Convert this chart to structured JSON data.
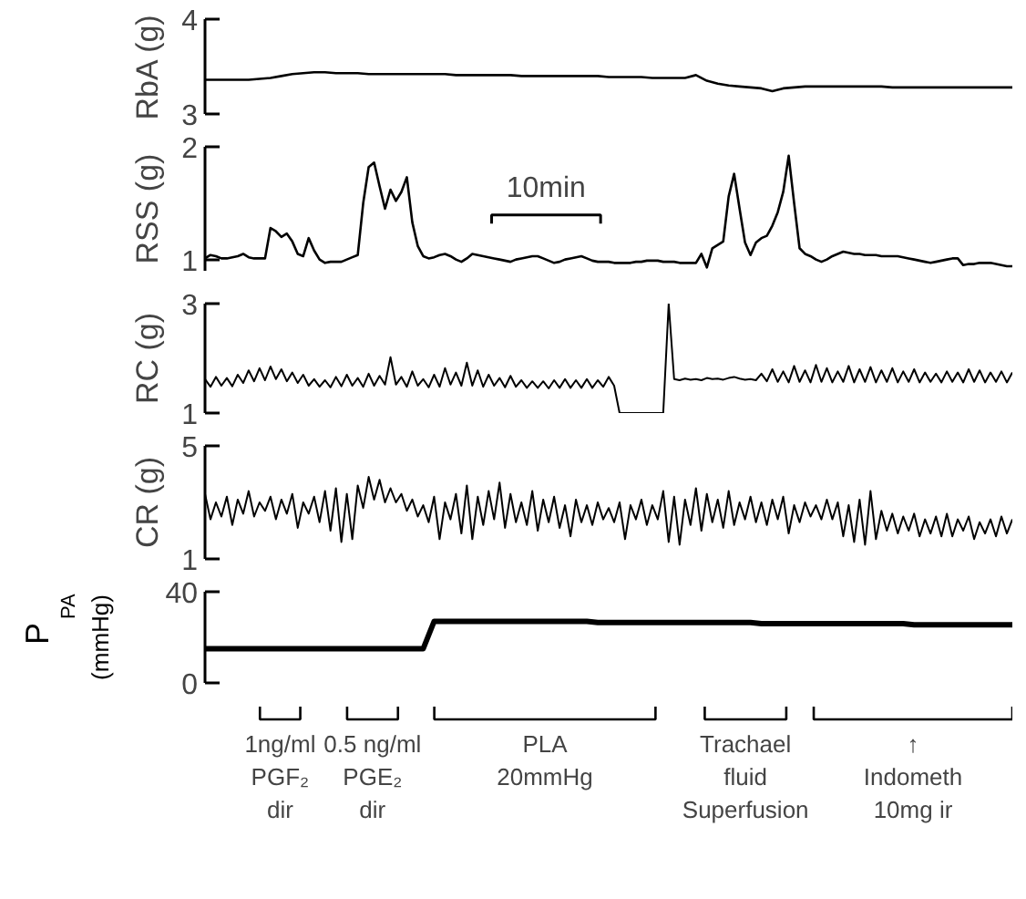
{
  "chart_data": [
    {
      "type": "line",
      "ylabel": "RbA (g)",
      "color": "#000000",
      "ylim": [
        3,
        4
      ],
      "yticks": [
        3,
        4
      ],
      "tick_labels": "y",
      "categories": [
        null,
        null,
        null,
        null,
        null,
        null,
        null,
        null,
        null,
        null,
        null,
        null,
        null,
        null,
        null,
        null,
        null,
        null,
        null,
        null,
        null,
        null,
        null,
        null,
        null,
        null,
        null,
        null,
        null,
        null,
        null,
        null,
        null,
        null,
        null,
        null,
        null,
        null,
        null,
        null,
        null,
        null,
        null,
        null,
        null,
        null,
        null,
        null,
        null,
        null,
        null,
        null,
        null,
        null,
        null,
        null,
        null,
        null,
        null,
        null,
        null,
        null,
        null,
        null,
        null,
        null,
        null,
        null,
        null,
        null,
        null,
        null,
        null,
        null,
        null
      ],
      "values": [
        3.36,
        3.36,
        3.36,
        3.36,
        3.36,
        3.37,
        3.38,
        3.4,
        3.42,
        3.43,
        3.44,
        3.44,
        3.43,
        3.43,
        3.43,
        3.42,
        3.42,
        3.42,
        3.42,
        3.42,
        3.42,
        3.42,
        3.42,
        3.41,
        3.41,
        3.41,
        3.41,
        3.41,
        3.41,
        3.4,
        3.4,
        3.4,
        3.4,
        3.4,
        3.4,
        3.4,
        3.4,
        3.39,
        3.39,
        3.39,
        3.39,
        3.38,
        3.38,
        3.38,
        3.38,
        3.41,
        3.35,
        3.32,
        3.3,
        3.29,
        3.28,
        3.27,
        3.24,
        3.27,
        3.28,
        3.29,
        3.29,
        3.29,
        3.29,
        3.29,
        3.29,
        3.29,
        3.29,
        3.28,
        3.28,
        3.28,
        3.28,
        3.28,
        3.28,
        3.28,
        3.28,
        3.28,
        3.28,
        3.28,
        3.28
      ]
    },
    {
      "type": "line",
      "ylabel": "RSS (g)",
      "color": "#000000",
      "ylim": [
        0.9,
        2.0
      ],
      "yticks": [
        1,
        2
      ],
      "tick_labels": "y",
      "annotations": [
        "10min"
      ],
      "categories": [
        null,
        null,
        null,
        null,
        null,
        null,
        null,
        null,
        null,
        null,
        null,
        null,
        null,
        null,
        null,
        null,
        null,
        null,
        null,
        null,
        null,
        null,
        null,
        null,
        null,
        null,
        null,
        null,
        null,
        null,
        null,
        null,
        null,
        null,
        null,
        null,
        null,
        null,
        null,
        null,
        null,
        null,
        null,
        null,
        null,
        null,
        null,
        null,
        null,
        null,
        null,
        null,
        null,
        null,
        null,
        null,
        null,
        null,
        null,
        null,
        null,
        null,
        null,
        null,
        null,
        null,
        null,
        null,
        null,
        null,
        null,
        null,
        null,
        null,
        null,
        null,
        null,
        null,
        null,
        null,
        null,
        null,
        null,
        null,
        null,
        null,
        null,
        null,
        null,
        null,
        null,
        null,
        null,
        null,
        null,
        null,
        null,
        null,
        null,
        null,
        null,
        null,
        null,
        null,
        null,
        null,
        null,
        null,
        null,
        null,
        null,
        null,
        null,
        null,
        null,
        null,
        null,
        null,
        null,
        null,
        null,
        null,
        null,
        null,
        null,
        null,
        null,
        null,
        null,
        null,
        null,
        null,
        null,
        null,
        null,
        null,
        null,
        null,
        null,
        null,
        null,
        null,
        null,
        null,
        null,
        null,
        null,
        null,
        null
      ],
      "values": [
        1.01,
        1.04,
        1.03,
        1.01,
        1.01,
        1.02,
        1.03,
        1.05,
        1.02,
        1.01,
        1.01,
        1.01,
        1.28,
        1.25,
        1.2,
        1.23,
        1.16,
        1.05,
        1.03,
        1.19,
        1.08,
        1.0,
        0.97,
        0.98,
        0.98,
        0.98,
        1.0,
        1.02,
        1.04,
        1.5,
        1.82,
        1.86,
        1.65,
        1.45,
        1.62,
        1.52,
        1.6,
        1.73,
        1.33,
        1.12,
        1.03,
        1.01,
        1.02,
        1.04,
        1.05,
        1.03,
        1.0,
        0.98,
        1.01,
        1.05,
        1.04,
        1.03,
        1.02,
        1.01,
        1.0,
        0.99,
        0.98,
        1.0,
        1.01,
        1.02,
        1.03,
        1.03,
        1.01,
        0.99,
        0.97,
        0.98,
        1.0,
        1.01,
        1.02,
        1.03,
        1.01,
        0.99,
        0.98,
        0.98,
        0.98,
        0.97,
        0.97,
        0.97,
        0.97,
        0.98,
        0.98,
        0.99,
        0.99,
        0.99,
        0.98,
        0.98,
        0.98,
        0.97,
        0.97,
        0.97,
        0.97,
        1.05,
        0.93,
        1.1,
        1.13,
        1.16,
        1.56,
        1.76,
        1.45,
        1.15,
        1.04,
        1.15,
        1.19,
        1.21,
        1.3,
        1.42,
        1.6,
        1.92,
        1.5,
        1.1,
        1.05,
        1.03,
        1.0,
        0.98,
        1.0,
        1.03,
        1.05,
        1.07,
        1.06,
        1.05,
        1.05,
        1.04,
        1.04,
        1.04,
        1.03,
        1.03,
        1.03,
        1.03,
        1.02,
        1.01,
        1.0,
        0.99,
        0.98,
        0.97,
        0.98,
        0.99,
        1.0,
        1.01,
        1.01,
        0.95,
        0.96,
        0.96,
        0.97,
        0.97,
        0.97,
        0.96,
        0.95,
        0.94,
        0.94
      ]
    },
    {
      "type": "line",
      "ylabel": "RC (g)",
      "color": "#000000",
      "ylim": [
        1,
        3
      ],
      "yticks": [
        1,
        3
      ],
      "tick_labels": "y",
      "categories": [
        null,
        null,
        null,
        null,
        null,
        null,
        null,
        null,
        null,
        null,
        null,
        null,
        null,
        null,
        null,
        null,
        null,
        null,
        null,
        null,
        null,
        null,
        null,
        null,
        null,
        null,
        null,
        null,
        null,
        null,
        null,
        null,
        null,
        null,
        null,
        null,
        null,
        null,
        null,
        null,
        null,
        null,
        null,
        null,
        null,
        null,
        null,
        null,
        null,
        null,
        null,
        null,
        null,
        null,
        null,
        null,
        null,
        null,
        null,
        null,
        null,
        null,
        null,
        null,
        null,
        null,
        null,
        null,
        null,
        null,
        null,
        null,
        null,
        null,
        null,
        null,
        null,
        null,
        null,
        null,
        null,
        null,
        null,
        null,
        null,
        null,
        null,
        null,
        null,
        null,
        null,
        null,
        null,
        null,
        null,
        null,
        null,
        null,
        null,
        null,
        null,
        null,
        null,
        null,
        null,
        null,
        null,
        null,
        null,
        null,
        null,
        null,
        null,
        null,
        null,
        null,
        null,
        null,
        null,
        null,
        null,
        null,
        null,
        null,
        null,
        null,
        null,
        null,
        null,
        null,
        null,
        null,
        null,
        null,
        null,
        null,
        null,
        null,
        null,
        null,
        null,
        null,
        null,
        null,
        null,
        null,
        null,
        null,
        null
      ],
      "values": [
        1.62,
        1.48,
        1.66,
        1.5,
        1.64,
        1.49,
        1.7,
        1.55,
        1.78,
        1.58,
        1.82,
        1.6,
        1.85,
        1.62,
        1.8,
        1.58,
        1.74,
        1.55,
        1.7,
        1.5,
        1.62,
        1.48,
        1.6,
        1.47,
        1.66,
        1.49,
        1.7,
        1.5,
        1.64,
        1.48,
        1.72,
        1.5,
        1.68,
        1.52,
        2.02,
        1.52,
        1.66,
        1.48,
        1.76,
        1.5,
        1.62,
        1.47,
        1.7,
        1.48,
        1.82,
        1.52,
        1.74,
        1.5,
        1.92,
        1.5,
        1.78,
        1.48,
        1.7,
        1.5,
        1.64,
        1.47,
        1.68,
        1.48,
        1.6,
        1.46,
        1.58,
        1.46,
        1.58,
        1.45,
        1.6,
        1.46,
        1.62,
        1.46,
        1.6,
        1.46,
        1.62,
        1.46,
        1.6,
        1.48,
        1.66,
        1.5,
        1.0,
        1.0,
        1.0,
        1.0,
        1.0,
        1.0,
        1.0,
        1.0,
        1.0,
        3.0,
        1.62,
        1.6,
        1.63,
        1.61,
        1.62,
        1.6,
        1.64,
        1.62,
        1.63,
        1.61,
        1.64,
        1.66,
        1.63,
        1.61,
        1.62,
        1.6,
        1.72,
        1.58,
        1.8,
        1.57,
        1.76,
        1.56,
        1.86,
        1.57,
        1.78,
        1.56,
        1.88,
        1.57,
        1.82,
        1.56,
        1.76,
        1.57,
        1.86,
        1.56,
        1.8,
        1.57,
        1.84,
        1.56,
        1.78,
        1.57,
        1.82,
        1.56,
        1.76,
        1.57,
        1.8,
        1.56,
        1.74,
        1.57,
        1.72,
        1.56,
        1.76,
        1.57,
        1.74,
        1.56,
        1.8,
        1.57,
        1.78,
        1.56,
        1.74,
        1.57,
        1.76,
        1.56,
        1.74
      ]
    },
    {
      "type": "line",
      "ylabel": "CR (g)",
      "color": "#000000",
      "ylim": [
        1,
        5
      ],
      "yticks": [
        1,
        5
      ],
      "tick_labels": "y",
      "categories": [
        null,
        null,
        null,
        null,
        null,
        null,
        null,
        null,
        null,
        null,
        null,
        null,
        null,
        null,
        null,
        null,
        null,
        null,
        null,
        null,
        null,
        null,
        null,
        null,
        null,
        null,
        null,
        null,
        null,
        null,
        null,
        null,
        null,
        null,
        null,
        null,
        null,
        null,
        null,
        null,
        null,
        null,
        null,
        null,
        null,
        null,
        null,
        null,
        null,
        null,
        null,
        null,
        null,
        null,
        null,
        null,
        null,
        null,
        null,
        null,
        null,
        null,
        null,
        null,
        null,
        null,
        null,
        null,
        null,
        null,
        null,
        null,
        null,
        null,
        null,
        null,
        null,
        null,
        null,
        null,
        null,
        null,
        null,
        null,
        null,
        null,
        null,
        null,
        null,
        null,
        null,
        null,
        null,
        null,
        null,
        null,
        null,
        null,
        null,
        null,
        null,
        null,
        null,
        null,
        null,
        null,
        null,
        null,
        null,
        null,
        null,
        null,
        null,
        null,
        null,
        null,
        null,
        null,
        null,
        null,
        null,
        null,
        null,
        null,
        null,
        null,
        null,
        null,
        null,
        null,
        null,
        null,
        null,
        null,
        null,
        null,
        null,
        null,
        null,
        null,
        null,
        null,
        null,
        null,
        null,
        null,
        null,
        null,
        null
      ],
      "values": [
        3.3,
        2.4,
        3.0,
        2.5,
        3.2,
        2.2,
        3.1,
        2.6,
        3.4,
        2.5,
        3.0,
        2.7,
        3.2,
        2.4,
        3.1,
        2.6,
        3.3,
        2.1,
        3.0,
        2.6,
        3.2,
        2.3,
        3.4,
        2.0,
        3.5,
        1.6,
        3.3,
        1.7,
        3.6,
        2.8,
        3.9,
        3.1,
        3.8,
        3.0,
        3.5,
        3.0,
        3.3,
        2.7,
        3.1,
        2.5,
        2.9,
        2.3,
        3.2,
        1.7,
        3.0,
        2.4,
        3.3,
        1.9,
        3.6,
        1.7,
        3.2,
        2.2,
        3.4,
        2.4,
        3.7,
        2.1,
        3.3,
        2.3,
        3.0,
        2.2,
        3.4,
        2.0,
        3.1,
        2.3,
        3.2,
        2.1,
        2.9,
        1.8,
        3.1,
        2.3,
        2.9,
        2.2,
        3.0,
        2.4,
        2.8,
        2.3,
        3.0,
        1.7,
        2.9,
        2.4,
        3.1,
        2.2,
        2.9,
        2.4,
        3.4,
        1.6,
        3.2,
        1.5,
        3.1,
        2.2,
        3.5,
        2.0,
        3.3,
        2.3,
        3.1,
        2.1,
        3.4,
        2.2,
        3.0,
        2.4,
        3.2,
        2.3,
        3.0,
        2.2,
        3.1,
        2.4,
        3.2,
        1.9,
        2.9,
        2.3,
        3.0,
        2.5,
        2.9,
        2.4,
        3.1,
        2.4,
        3.0,
        1.8,
        2.9,
        1.6,
        3.1,
        1.5,
        3.4,
        1.7,
        2.7,
        2.0,
        2.6,
        1.9,
        2.5,
        2.0,
        2.6,
        1.8,
        2.4,
        1.9,
        2.5,
        1.8,
        2.6,
        1.8,
        2.4,
        2.0,
        2.5,
        1.7,
        2.3,
        1.9,
        2.4,
        1.8,
        2.5,
        1.9,
        2.4
      ]
    },
    {
      "type": "line",
      "ylabel": "P$_{PA}$ (mmHg)",
      "color": "#000000",
      "ylim": [
        0,
        40
      ],
      "yticks": [
        0,
        40
      ],
      "tick_labels": "y",
      "annotations": [
        "1ng/ml\nPGF₂\ndir",
        "0.5 ng/ml\nPGE₂\ndir",
        "PLA\n20mmHg",
        "Trachael\nfluid\nSuperfusion",
        "↑\nIndometh\n10mg ir"
      ],
      "categories": [
        null,
        null,
        null,
        null,
        null,
        null,
        null,
        null,
        null,
        null,
        null,
        null,
        null,
        null,
        null,
        null,
        null,
        null,
        null,
        null,
        null,
        null,
        null,
        null,
        null,
        null,
        null,
        null,
        null,
        null,
        null,
        null,
        null,
        null,
        null,
        null,
        null,
        null,
        null,
        null,
        null,
        null,
        null,
        null,
        null,
        null,
        null,
        null,
        null,
        null,
        null,
        null,
        null,
        null,
        null,
        null,
        null,
        null,
        null,
        null,
        null,
        null,
        null,
        null,
        null,
        null,
        null,
        null,
        null,
        null,
        null,
        null,
        null,
        null,
        null
      ],
      "values": [
        15,
        15,
        15,
        15,
        15,
        15,
        15,
        15,
        15,
        15,
        15,
        15,
        15,
        15,
        15,
        15,
        15,
        15,
        15,
        15,
        15,
        27,
        27,
        27,
        27,
        27,
        27,
        27,
        27,
        27,
        27,
        27,
        27,
        27,
        27,
        27,
        26.5,
        26.5,
        26.5,
        26.5,
        26.5,
        26.5,
        26.5,
        26.5,
        26.5,
        26.5,
        26.5,
        26.5,
        26.5,
        26.5,
        26.5,
        26,
        26,
        26,
        26,
        26,
        26,
        26,
        26,
        26,
        26,
        26,
        26,
        26,
        26,
        25.5,
        25.5,
        25.5,
        25.5,
        25.5,
        25.5,
        25.5,
        25.5,
        25.5,
        25.5
      ]
    }
  ]
}
